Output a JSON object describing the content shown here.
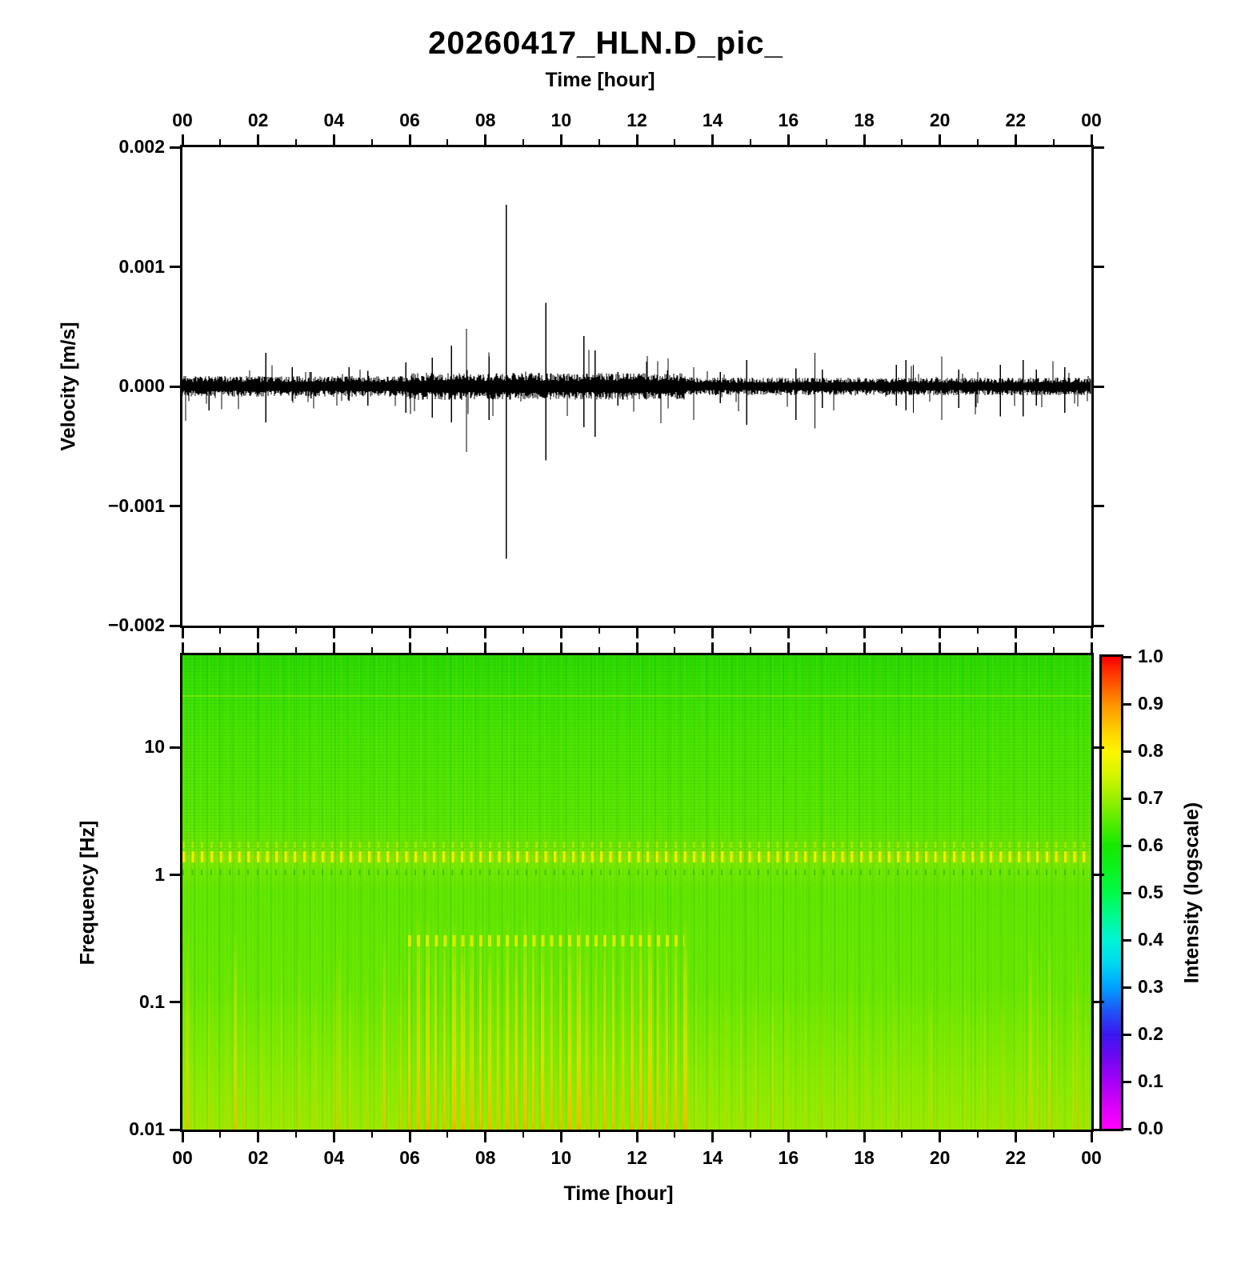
{
  "title": "20260417_HLN.D_pic_",
  "axes": {
    "time_label": "Time [hour]",
    "time_tick_labels": [
      "00",
      "02",
      "04",
      "06",
      "08",
      "10",
      "12",
      "14",
      "16",
      "18",
      "20",
      "22",
      "00"
    ],
    "velocity_label": "Velocity [m/s]",
    "velocity_tick_labels": [
      "0.002",
      "0.001",
      "0.000",
      "−0.001",
      "−0.002"
    ],
    "frequency_label": "Frequency [Hz]",
    "frequency_tick_labels": [
      "10",
      "1",
      "0.1",
      "0.01"
    ],
    "intensity_label": "Intensity (logscale)",
    "intensity_tick_labels": [
      "1.0",
      "0.9",
      "0.8",
      "0.7",
      "0.6",
      "0.5",
      "0.4",
      "0.3",
      "0.2",
      "0.1",
      "0.0"
    ]
  },
  "chart_data": [
    {
      "type": "line",
      "name": "seismogram",
      "title": "20260417_HLN.D_pic_",
      "xlabel": "Time [hour]",
      "ylabel": "Velocity [m/s]",
      "xlim": [
        0,
        24
      ],
      "ylim": [
        -0.002,
        0.002
      ],
      "x_major_tick_hours": [
        0,
        2,
        4,
        6,
        8,
        10,
        12,
        14,
        16,
        18,
        20,
        22,
        24
      ],
      "x_minor_tick_hours": [
        1,
        3,
        5,
        7,
        9,
        11,
        13,
        15,
        17,
        19,
        21,
        23
      ],
      "y_tick_values": [
        0.002,
        0.001,
        0.0,
        -0.001,
        -0.002
      ],
      "noise_segments": [
        {
          "from_hour": 0.0,
          "to_hour": 6.0,
          "amplitude": 7e-05
        },
        {
          "from_hour": 6.0,
          "to_hour": 13.3,
          "amplitude": 9e-05
        },
        {
          "from_hour": 13.3,
          "to_hour": 24.0,
          "amplitude": 6e-05
        }
      ],
      "spikes": [
        {
          "hour": 0.7,
          "up": 8e-05,
          "down": -0.0002
        },
        {
          "hour": 2.2,
          "up": 0.00028,
          "down": -0.0003
        },
        {
          "hour": 2.9,
          "up": 0.00016,
          "down": -0.00012
        },
        {
          "hour": 3.4,
          "up": 0.00012,
          "down": -0.0001
        },
        {
          "hour": 4.4,
          "up": 0.00016,
          "down": -0.00012
        },
        {
          "hour": 4.9,
          "up": 0.00013,
          "down": -0.00016
        },
        {
          "hour": 5.9,
          "up": 0.0002,
          "down": -0.00022
        },
        {
          "hour": 6.6,
          "up": 0.00024,
          "down": -0.00026
        },
        {
          "hour": 7.1,
          "up": 0.00034,
          "down": -0.0003
        },
        {
          "hour": 7.5,
          "up": 0.00048,
          "down": -0.00055
        },
        {
          "hour": 8.1,
          "up": 0.00025,
          "down": -0.00028
        },
        {
          "hour": 8.55,
          "up": 0.00152,
          "down": -0.00144
        },
        {
          "hour": 9.6,
          "up": 0.0007,
          "down": -0.00062
        },
        {
          "hour": 10.6,
          "up": 0.00042,
          "down": -0.00034
        },
        {
          "hour": 10.9,
          "up": 0.0003,
          "down": -0.00042
        },
        {
          "hour": 11.5,
          "up": 0.00012,
          "down": -0.00016
        },
        {
          "hour": 13.5,
          "up": 0.00016,
          "down": -0.00028
        },
        {
          "hour": 14.2,
          "up": 0.00012,
          "down": -0.00014
        },
        {
          "hour": 14.9,
          "up": 0.00022,
          "down": -0.00032
        },
        {
          "hour": 16.2,
          "up": 0.00015,
          "down": -0.00028
        },
        {
          "hour": 16.7,
          "up": 0.00028,
          "down": -0.00035
        },
        {
          "hour": 16.9,
          "up": 0.00014,
          "down": -0.00018
        },
        {
          "hour": 18.85,
          "up": 0.00018,
          "down": -0.00016
        },
        {
          "hour": 19.1,
          "up": 0.00022,
          "down": -0.0002
        },
        {
          "hour": 19.3,
          "up": 0.00018,
          "down": -0.00022
        },
        {
          "hour": 20.05,
          "up": 0.00025,
          "down": -0.00028
        },
        {
          "hour": 20.5,
          "up": 0.00014,
          "down": -0.00018
        },
        {
          "hour": 21.0,
          "up": 0.00012,
          "down": -0.00014
        },
        {
          "hour": 21.6,
          "up": 0.00018,
          "down": -0.00025
        },
        {
          "hour": 22.2,
          "up": 0.00022,
          "down": -0.00025
        },
        {
          "hour": 22.55,
          "up": 0.00014,
          "down": -0.00016
        },
        {
          "hour": 23.3,
          "up": 0.00016,
          "down": -0.00022
        }
      ]
    },
    {
      "type": "heatmap",
      "name": "spectrogram",
      "xlabel": "Time [hour]",
      "ylabel": "Frequency [Hz]",
      "xlim": [
        0,
        24
      ],
      "ylim": [
        0.01,
        53
      ],
      "y_scale": "log",
      "y_tick_values": [
        10,
        1,
        0.1,
        0.01
      ],
      "base_intensity": 0.62,
      "colorbar": {
        "label": "Intensity (logscale)",
        "min": 0.0,
        "max": 1.0,
        "tick_step": 0.1,
        "stops": [
          [
            0.0,
            "#ff00ff"
          ],
          [
            0.05,
            "#d800f8"
          ],
          [
            0.1,
            "#a500f5"
          ],
          [
            0.15,
            "#7008f0"
          ],
          [
            0.2,
            "#3a16f0"
          ],
          [
            0.25,
            "#1e55f5"
          ],
          [
            0.3,
            "#00a0ff"
          ],
          [
            0.35,
            "#00d8f2"
          ],
          [
            0.4,
            "#00f4d4"
          ],
          [
            0.45,
            "#00fa90"
          ],
          [
            0.5,
            "#00fa48"
          ],
          [
            0.55,
            "#0cf21e"
          ],
          [
            0.6,
            "#16e800"
          ],
          [
            0.65,
            "#55ec00"
          ],
          [
            0.7,
            "#9af000"
          ],
          [
            0.75,
            "#d6f500"
          ],
          [
            0.8,
            "#fff500"
          ],
          [
            0.85,
            "#ffc800"
          ],
          [
            0.9,
            "#ff9100"
          ],
          [
            0.95,
            "#ff4b00"
          ],
          [
            1.0,
            "#ff0000"
          ]
        ]
      },
      "features": {
        "microseism_band_hz": [
          1.2,
          1.5
        ],
        "stripe_period_hour": 0.235,
        "high_activity": {
          "from_hour": 5.95,
          "to_hour": 13.25,
          "below_hz": 0.35,
          "peak_intensity": 0.82
        },
        "background_low_freq_intensity": 0.68
      }
    }
  ]
}
